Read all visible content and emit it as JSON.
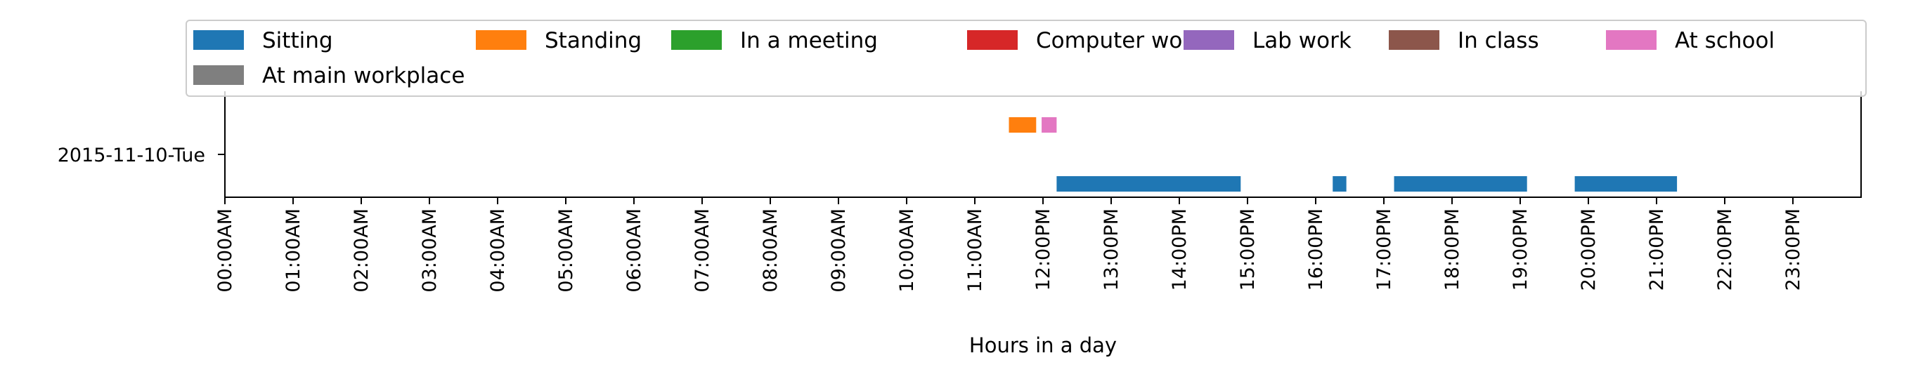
{
  "chart_data": {
    "type": "timeline",
    "xlabel": "Hours in a day",
    "ylabel": "",
    "day_label": "2015-11-10-Tue",
    "x_unit": "hours",
    "xlim": [
      0,
      24
    ],
    "x_tick_labels": [
      "00:00AM",
      "01:00AM",
      "02:00AM",
      "03:00AM",
      "04:00AM",
      "05:00AM",
      "06:00AM",
      "07:00AM",
      "08:00AM",
      "09:00AM",
      "10:00AM",
      "11:00AM",
      "12:00PM",
      "13:00PM",
      "14:00PM",
      "15:00PM",
      "16:00PM",
      "17:00PM",
      "18:00PM",
      "19:00PM",
      "20:00PM",
      "21:00PM",
      "22:00PM",
      "23:00PM"
    ],
    "legend_placement": "top",
    "grid": false,
    "series": [
      {
        "name": "Sitting",
        "color": "#1f77b4",
        "lane": 0,
        "intervals": [
          [
            12.2,
            14.9
          ],
          [
            16.25,
            16.45
          ],
          [
            17.15,
            19.1
          ],
          [
            19.8,
            21.3
          ]
        ]
      },
      {
        "name": "Standing",
        "color": "#ff7f0e",
        "lane": 1,
        "intervals": [
          [
            11.5,
            11.9
          ]
        ]
      },
      {
        "name": "In a meeting",
        "color": "#2ca02c",
        "lane": 2,
        "intervals": []
      },
      {
        "name": "Computer work",
        "color": "#d62728",
        "lane": 3,
        "intervals": []
      },
      {
        "name": "Lab work",
        "color": "#9467bd",
        "lane": 4,
        "intervals": []
      },
      {
        "name": "In class",
        "color": "#8c564b",
        "lane": 5,
        "intervals": []
      },
      {
        "name": "At school",
        "color": "#e377c2",
        "lane": 6,
        "intervals": [
          [
            11.98,
            12.2
          ]
        ]
      },
      {
        "name": "At main workplace",
        "color": "#7f7f7f",
        "lane": 7,
        "intervals": []
      }
    ]
  }
}
